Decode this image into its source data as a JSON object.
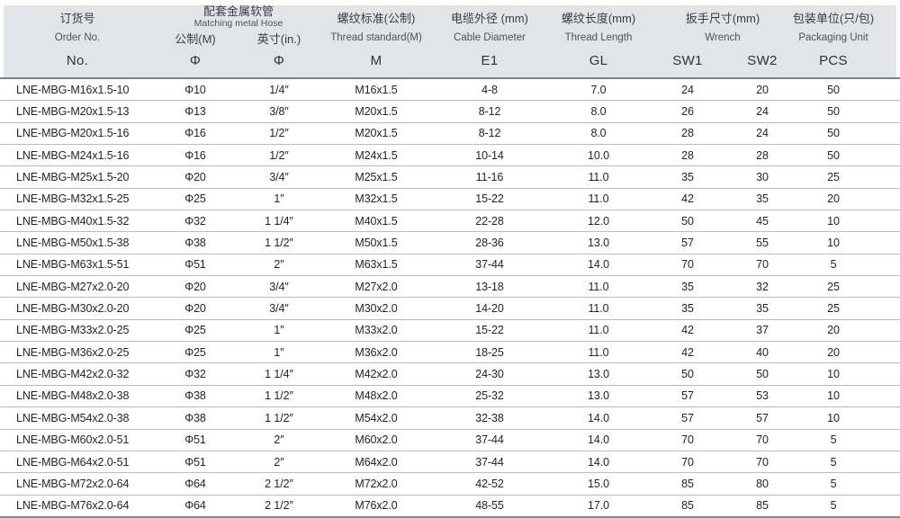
{
  "header": {
    "order": {
      "cn": "订货号",
      "en": "Order No.",
      "sym": "No."
    },
    "hose": {
      "cn": "配套金属软管",
      "en": "Matching metal Hose"
    },
    "hose_metric": {
      "label": "公制(M)",
      "sym": "Φ"
    },
    "hose_inch": {
      "label": "英寸(in.)",
      "sym": "Φ"
    },
    "thread": {
      "cn": "螺纹标准(公制)",
      "en": "Thread standard(M)",
      "sym": "M"
    },
    "cable": {
      "cn": "电缆外径 (mm)",
      "en": "Cable Diameter",
      "sym": "E1"
    },
    "length": {
      "cn": "螺纹长度(mm)",
      "en": "Thread Length",
      "sym": "GL"
    },
    "wrench": {
      "cn": "扳手尺寸(mm)",
      "en": "Wrench",
      "sym1": "SW1",
      "sym2": "SW2"
    },
    "packaging": {
      "cn": "包装单位(只/包)",
      "en": "Packaging Unit",
      "sym": "PCS"
    }
  },
  "rows": [
    [
      "LNE-MBG-M16x1.5-10",
      "Φ10",
      "1/4″",
      "M16x1.5",
      "4-8",
      "7.0",
      "24",
      "20",
      "50"
    ],
    [
      "LNE-MBG-M20x1.5-13",
      "Φ13",
      "3/8″",
      "M20x1.5",
      "8-12",
      "8.0",
      "26",
      "24",
      "50"
    ],
    [
      "LNE-MBG-M20x1.5-16",
      "Φ16",
      "1/2″",
      "M20x1.5",
      "8-12",
      "8.0",
      "28",
      "24",
      "50"
    ],
    [
      "LNE-MBG-M24x1.5-16",
      "Φ16",
      "1/2″",
      "M24x1.5",
      "10-14",
      "10.0",
      "28",
      "28",
      "50"
    ],
    [
      "LNE-MBG-M25x1.5-20",
      "Φ20",
      "3/4″",
      "M25x1.5",
      "11-16",
      "11.0",
      "35",
      "30",
      "25"
    ],
    [
      "LNE-MBG-M32x1.5-25",
      "Φ25",
      "1″",
      "M32x1.5",
      "15-22",
      "11.0",
      "42",
      "35",
      "20"
    ],
    [
      "LNE-MBG-M40x1.5-32",
      "Φ32",
      "1 1/4″",
      "M40x1.5",
      "22-28",
      "12.0",
      "50",
      "45",
      "10"
    ],
    [
      "LNE-MBG-M50x1.5-38",
      "Φ38",
      "1 1/2″",
      "M50x1.5",
      "28-36",
      "13.0",
      "57",
      "55",
      "10"
    ],
    [
      "LNE-MBG-M63x1.5-51",
      "Φ51",
      "2″",
      "M63x1.5",
      "37-44",
      "14.0",
      "70",
      "70",
      "5"
    ],
    [
      "LNE-MBG-M27x2.0-20",
      "Φ20",
      "3/4″",
      "M27x2.0",
      "13-18",
      "11.0",
      "35",
      "32",
      "25"
    ],
    [
      "LNE-MBG-M30x2.0-20",
      "Φ20",
      "3/4″",
      "M30x2.0",
      "14-20",
      "11.0",
      "35",
      "35",
      "25"
    ],
    [
      "LNE-MBG-M33x2.0-25",
      "Φ25",
      "1″",
      "M33x2.0",
      "15-22",
      "11.0",
      "42",
      "37",
      "20"
    ],
    [
      "LNE-MBG-M36x2.0-25",
      "Φ25",
      "1″",
      "M36x2.0",
      "18-25",
      "11.0",
      "42",
      "40",
      "20"
    ],
    [
      "LNE-MBG-M42x2.0-32",
      "Φ32",
      "1 1/4″",
      "M42x2.0",
      "24-30",
      "13.0",
      "50",
      "50",
      "10"
    ],
    [
      "LNE-MBG-M48x2.0-38",
      "Φ38",
      "1 1/2″",
      "M48x2.0",
      "25-32",
      "13.0",
      "57",
      "53",
      "10"
    ],
    [
      "LNE-MBG-M54x2.0-38",
      "Φ38",
      "1 1/2″",
      "M54x2.0",
      "32-38",
      "14.0",
      "57",
      "57",
      "10"
    ],
    [
      "LNE-MBG-M60x2.0-51",
      "Φ51",
      "2″",
      "M60x2.0",
      "37-44",
      "14.0",
      "70",
      "70",
      "5"
    ],
    [
      "LNE-MBG-M64x2.0-51",
      "Φ51",
      "2″",
      "M64x2.0",
      "37-44",
      "14.0",
      "70",
      "70",
      "5"
    ],
    [
      "LNE-MBG-M72x2.0-64",
      "Φ64",
      "2 1/2″",
      "M72x2.0",
      "42-52",
      "15.0",
      "85",
      "80",
      "5"
    ],
    [
      "LNE-MBG-M76x2.0-64",
      "Φ64",
      "2 1/2″",
      "M76x2.0",
      "48-55",
      "17.0",
      "85",
      "85",
      "5"
    ]
  ],
  "colors": {
    "header_bg": "#e1e5ea",
    "header_border": "#7b818a",
    "row_separator": "#b4b9bf",
    "bottom_border": "#82888f",
    "body_text": "#212429",
    "header_text_cn": "#393d43",
    "header_text_en": "#4d525a"
  }
}
